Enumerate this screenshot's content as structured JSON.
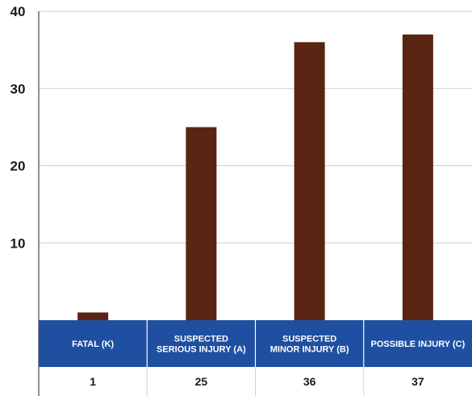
{
  "chart_data": {
    "type": "bar",
    "categories": [
      [
        "FATAL (K)"
      ],
      [
        "SUSPECTED",
        "SERIOUS INJURY (A)"
      ],
      [
        "SUSPECTED",
        "MINOR INJURY (B)"
      ],
      [
        "POSSIBLE INJURY (C)"
      ]
    ],
    "values": [
      1,
      25,
      36,
      37
    ],
    "value_labels": [
      "1",
      "25",
      "36",
      "37"
    ],
    "ylim": [
      0,
      40
    ],
    "yticks": [
      10,
      20,
      30,
      40
    ],
    "ytick_labels": [
      "10",
      "20",
      "30",
      "40"
    ],
    "grid": "horizontal",
    "title": "",
    "xlabel": "",
    "ylabel": "",
    "colors": {
      "bar": "#5a2412",
      "header_bg": "#1f4fa0",
      "header_text": "#ffffff",
      "grid": "#cfcfcf",
      "axis": "#222222"
    }
  }
}
